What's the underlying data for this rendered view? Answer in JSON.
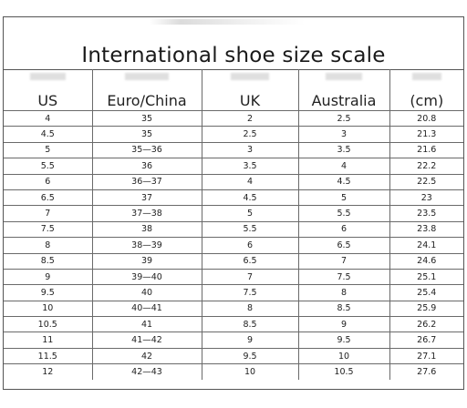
{
  "title": "International shoe size scale",
  "columns": [
    "US",
    "Euro/China",
    "UK",
    "Australia",
    "(cm)"
  ],
  "rows": [
    [
      "4",
      "35",
      "2",
      "2.5",
      "20.8"
    ],
    [
      "4.5",
      "35",
      "2.5",
      "3",
      "21.3"
    ],
    [
      "5",
      "35—36",
      "3",
      "3.5",
      "21.6"
    ],
    [
      "5.5",
      "36",
      "3.5",
      "4",
      "22.2"
    ],
    [
      "6",
      "36—37",
      "4",
      "4.5",
      "22.5"
    ],
    [
      "6.5",
      "37",
      "4.5",
      "5",
      "23"
    ],
    [
      "7",
      "37—38",
      "5",
      "5.5",
      "23.5"
    ],
    [
      "7.5",
      "38",
      "5.5",
      "6",
      "23.8"
    ],
    [
      "8",
      "38—39",
      "6",
      "6.5",
      "24.1"
    ],
    [
      "8.5",
      "39",
      "6.5",
      "7",
      "24.6"
    ],
    [
      "9",
      "39—40",
      "7",
      "7.5",
      "25.1"
    ],
    [
      "9.5",
      "40",
      "7.5",
      "8",
      "25.4"
    ],
    [
      "10",
      "40—41",
      "8",
      "8.5",
      "25.9"
    ],
    [
      "10.5",
      "41",
      "8.5",
      "9",
      "26.2"
    ],
    [
      "11",
      "41—42",
      "9",
      "9.5",
      "26.7"
    ],
    [
      "11.5",
      "42",
      "9.5",
      "10",
      "27.1"
    ],
    [
      "12",
      "42—43",
      "10",
      "10.5",
      "27.6"
    ]
  ],
  "colors": {
    "border": "#6a6a6a",
    "text": "#222222",
    "background": "#ffffff"
  }
}
